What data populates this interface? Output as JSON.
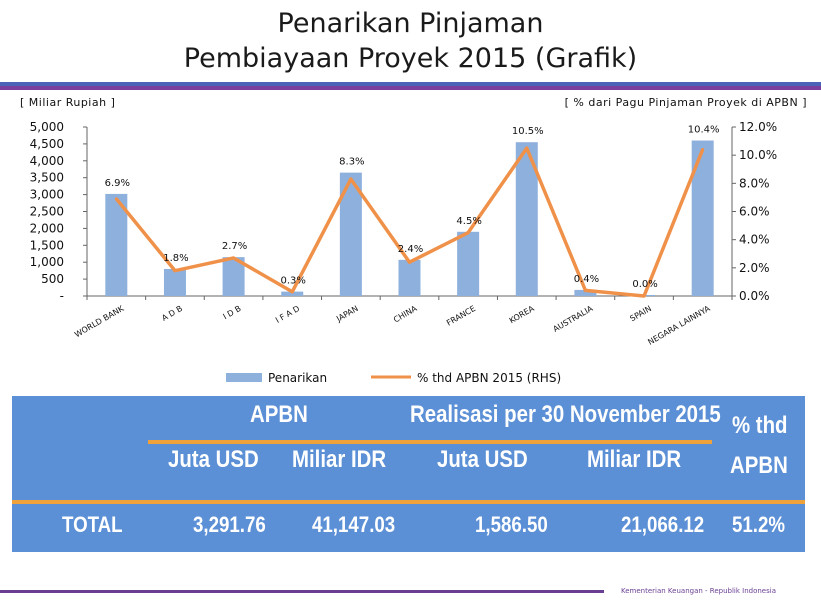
{
  "title": {
    "line1": "Penarikan Pinjaman",
    "line2": "Pembiayaan Proyek 2015 (Grafik)"
  },
  "units": {
    "left": "[ Miliar Rupiah ]",
    "right": "[ % dari Pagu Pinjaman Proyek di APBN ]"
  },
  "chart_data": {
    "type": "bar",
    "categories": [
      "WORLD BANK",
      "A D B",
      "I D B",
      "I F A D",
      "JAPAN",
      "CHINA",
      "FRANCE",
      "KOREA",
      "AUSTRALIA",
      "SPAIN",
      "NEGARA LAINNYA"
    ],
    "series": [
      {
        "name": "Penarikan",
        "type": "bar",
        "axis": "left",
        "color": "#8eb0dd",
        "values": [
          3020,
          800,
          1150,
          130,
          3650,
          1070,
          1900,
          4550,
          180,
          30,
          4600
        ]
      },
      {
        "name": "% thd APBN 2015 (RHS)",
        "type": "line",
        "axis": "right",
        "color": "#f0914a",
        "values": [
          6.9,
          1.8,
          2.7,
          0.3,
          8.3,
          2.4,
          4.5,
          10.5,
          0.4,
          0.0,
          10.4
        ],
        "labels": [
          "6.9%",
          "1.8%",
          "2.7%",
          "0.3%",
          "8.3%",
          "2.4%",
          "4.5%",
          "10.5%",
          "0.4%",
          "0.0%",
          "10.4%"
        ]
      }
    ],
    "ylim_left": [
      0,
      5000
    ],
    "ylim_right": [
      0,
      12
    ],
    "yticks_left": [
      "-",
      "500",
      "1,000",
      "1,500",
      "2,000",
      "2,500",
      "3,000",
      "3,500",
      "4,000",
      "4,500",
      "5,000"
    ],
    "yticks_right": [
      "0.0%",
      "2.0%",
      "4.0%",
      "6.0%",
      "8.0%",
      "10.0%",
      "12.0%"
    ],
    "legend_position": "bottom"
  },
  "table": {
    "apbn_header": "APBN",
    "realisasi_header": "Realisasi per 30 November 2015",
    "pct_header_1": "% thd",
    "pct_header_2": "APBN",
    "sub_juta_1": "Juta USD",
    "sub_miliar_1": "Miliar IDR",
    "sub_juta_2": "Juta USD",
    "sub_miliar_2": "Miliar IDR",
    "row_label": "TOTAL",
    "apbn_usd": "3,291.76",
    "apbn_idr": "41,147.03",
    "real_usd": "1,586.50",
    "real_idr": "21,066.12",
    "pct": "51.2%"
  },
  "footer": "Kementerian Keuangan - Republik Indonesia"
}
